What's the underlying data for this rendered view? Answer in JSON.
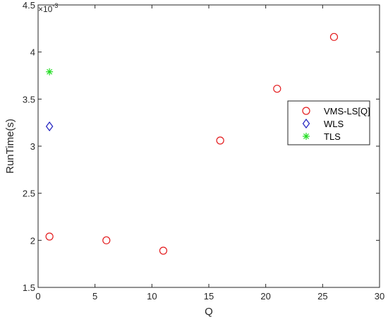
{
  "chart_data": {
    "type": "scatter",
    "xlabel": "Q",
    "ylabel": "RunTime(s)",
    "xlim": [
      0,
      30
    ],
    "ylim": [
      1.5,
      4.5
    ],
    "x_ticks": [
      "0",
      "5",
      "10",
      "15",
      "20",
      "25",
      "30"
    ],
    "y_ticks": [
      "1.5",
      "2",
      "2.5",
      "3",
      "3.5",
      "4",
      "4.5"
    ],
    "y_exponent_base": "×10",
    "y_exponent_power": "-3",
    "grid": false,
    "legend_position": "right",
    "series": [
      {
        "name": "VMS-LS[Q]",
        "marker": "circle",
        "color": "#e31a1c",
        "x": [
          1,
          6,
          11,
          16,
          21,
          26
        ],
        "y": [
          2.04,
          2.0,
          1.89,
          3.06,
          3.61,
          4.16
        ]
      },
      {
        "name": "WLS",
        "marker": "diamond",
        "color": "#1f1fbf",
        "x": [
          1
        ],
        "y": [
          3.21
        ]
      },
      {
        "name": "TLS",
        "marker": "asterisk",
        "color": "#22dd22",
        "x": [
          1
        ],
        "y": [
          3.79
        ]
      }
    ]
  }
}
